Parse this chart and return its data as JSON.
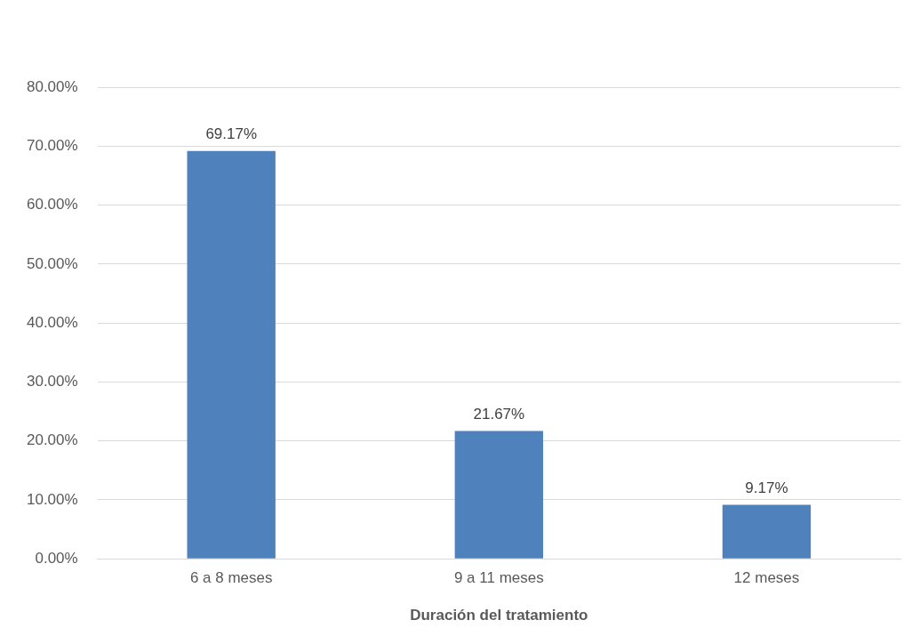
{
  "chart_data": {
    "type": "bar",
    "xlabel": "Duración del tratamiento",
    "categories": [
      "6 a 8 meses",
      "9 a 11 meses",
      "12 meses"
    ],
    "values": [
      69.17,
      21.67,
      9.17
    ],
    "value_labels": [
      "69.17%",
      "21.67%",
      "9.17%"
    ],
    "color": "#4f81bd",
    "ylim": [
      0,
      80
    ],
    "yticks": [
      {
        "value": 0,
        "label": "0.00%"
      },
      {
        "value": 10,
        "label": "10.00%"
      },
      {
        "value": 20,
        "label": "20.00%"
      },
      {
        "value": 30,
        "label": "30.00%"
      },
      {
        "value": 40,
        "label": "40.00%"
      },
      {
        "value": 50,
        "label": "50.00%"
      },
      {
        "value": 60,
        "label": "60.00%"
      },
      {
        "value": 70,
        "label": "70.00%"
      },
      {
        "value": 80,
        "label": "80.00%"
      }
    ],
    "grid": "y",
    "legend": false
  }
}
